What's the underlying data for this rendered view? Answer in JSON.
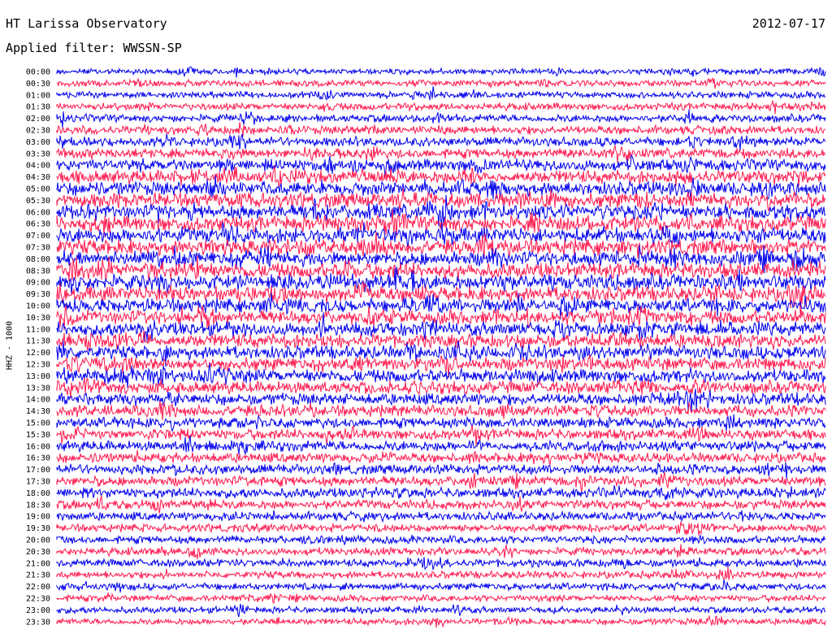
{
  "header": {
    "station": "HT Larissa Observatory",
    "filter": "Applied filter: WWSSN-SP",
    "date": "2012-07-17",
    "channel": "HHZ - 1000"
  },
  "chart_data": {
    "type": "line",
    "title": "HT Larissa Observatory",
    "subtitle": "Applied filter: WWSSN-SP",
    "ylabel": "HHZ - 1000",
    "grid": false,
    "series_colors": [
      "#0000ee",
      "#ff1a4f"
    ],
    "rows": [
      {
        "label": "00:00",
        "activity": 0.25
      },
      {
        "label": "00:30",
        "activity": 0.3
      },
      {
        "label": "01:00",
        "activity": 0.3
      },
      {
        "label": "01:30",
        "activity": 0.35
      },
      {
        "label": "02:00",
        "activity": 0.4
      },
      {
        "label": "02:30",
        "activity": 0.45
      },
      {
        "label": "03:00",
        "activity": 0.5
      },
      {
        "label": "03:30",
        "activity": 0.55
      },
      {
        "label": "04:00",
        "activity": 0.7
      },
      {
        "label": "04:30",
        "activity": 0.8
      },
      {
        "label": "05:00",
        "activity": 0.85
      },
      {
        "label": "05:30",
        "activity": 0.9
      },
      {
        "label": "06:00",
        "activity": 0.9
      },
      {
        "label": "06:30",
        "activity": 0.95
      },
      {
        "label": "07:00",
        "activity": 0.95
      },
      {
        "label": "07:30",
        "activity": 0.95
      },
      {
        "label": "08:00",
        "activity": 0.9
      },
      {
        "label": "08:30",
        "activity": 0.95
      },
      {
        "label": "09:00",
        "activity": 0.95
      },
      {
        "label": "09:30",
        "activity": 0.9
      },
      {
        "label": "10:00",
        "activity": 0.85
      },
      {
        "label": "10:30",
        "activity": 0.85
      },
      {
        "label": "11:00",
        "activity": 0.85
      },
      {
        "label": "11:30",
        "activity": 0.85
      },
      {
        "label": "12:00",
        "activity": 0.8
      },
      {
        "label": "12:30",
        "activity": 0.8
      },
      {
        "label": "13:00",
        "activity": 0.8
      },
      {
        "label": "13:30",
        "activity": 0.75
      },
      {
        "label": "14:00",
        "activity": 0.7
      },
      {
        "label": "14:30",
        "activity": 0.65
      },
      {
        "label": "15:00",
        "activity": 0.6
      },
      {
        "label": "15:30",
        "activity": 0.6
      },
      {
        "label": "16:00",
        "activity": 0.6
      },
      {
        "label": "16:30",
        "activity": 0.55
      },
      {
        "label": "17:00",
        "activity": 0.55
      },
      {
        "label": "17:30",
        "activity": 0.55
      },
      {
        "label": "18:00",
        "activity": 0.55
      },
      {
        "label": "18:30",
        "activity": 0.5
      },
      {
        "label": "19:00",
        "activity": 0.45
      },
      {
        "label": "19:30",
        "activity": 0.4
      },
      {
        "label": "20:00",
        "activity": 0.4
      },
      {
        "label": "20:30",
        "activity": 0.4
      },
      {
        "label": "21:00",
        "activity": 0.4
      },
      {
        "label": "21:30",
        "activity": 0.35
      },
      {
        "label": "22:00",
        "activity": 0.35
      },
      {
        "label": "22:30",
        "activity": 0.3
      },
      {
        "label": "23:00",
        "activity": 0.3
      },
      {
        "label": "23:30",
        "activity": 0.3
      }
    ]
  }
}
